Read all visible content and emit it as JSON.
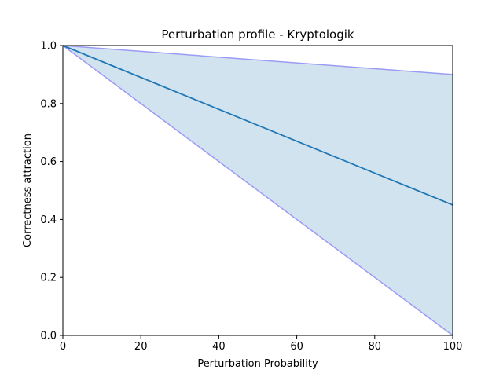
{
  "chart_data": {
    "type": "area",
    "title": "Perturbation profile - Kryptologik",
    "xlabel": "Perturbation Probability",
    "ylabel": "Correctness attraction",
    "xlim": [
      0,
      100
    ],
    "ylim": [
      0,
      1.0
    ],
    "x_ticks": [
      0,
      20,
      40,
      60,
      80,
      100
    ],
    "y_ticks": [
      0.0,
      0.2,
      0.4,
      0.6,
      0.8,
      1.0
    ],
    "x_tick_labels": [
      "0",
      "20",
      "40",
      "60",
      "80",
      "100"
    ],
    "y_tick_labels": [
      "0.0",
      "0.2",
      "0.4",
      "0.6",
      "0.8",
      "1.0"
    ],
    "grid": false,
    "x": [
      0,
      100
    ],
    "series": [
      {
        "role": "mean",
        "values": [
          1.0,
          0.45
        ],
        "color": "#1f77b4"
      },
      {
        "role": "upper-bound",
        "values": [
          1.0,
          0.9
        ],
        "color": "#9b9bf5"
      },
      {
        "role": "lower-bound",
        "values": [
          1.0,
          0.0
        ],
        "color": "#9b9bf5"
      }
    ],
    "band_color": "#d2e3f0"
  }
}
